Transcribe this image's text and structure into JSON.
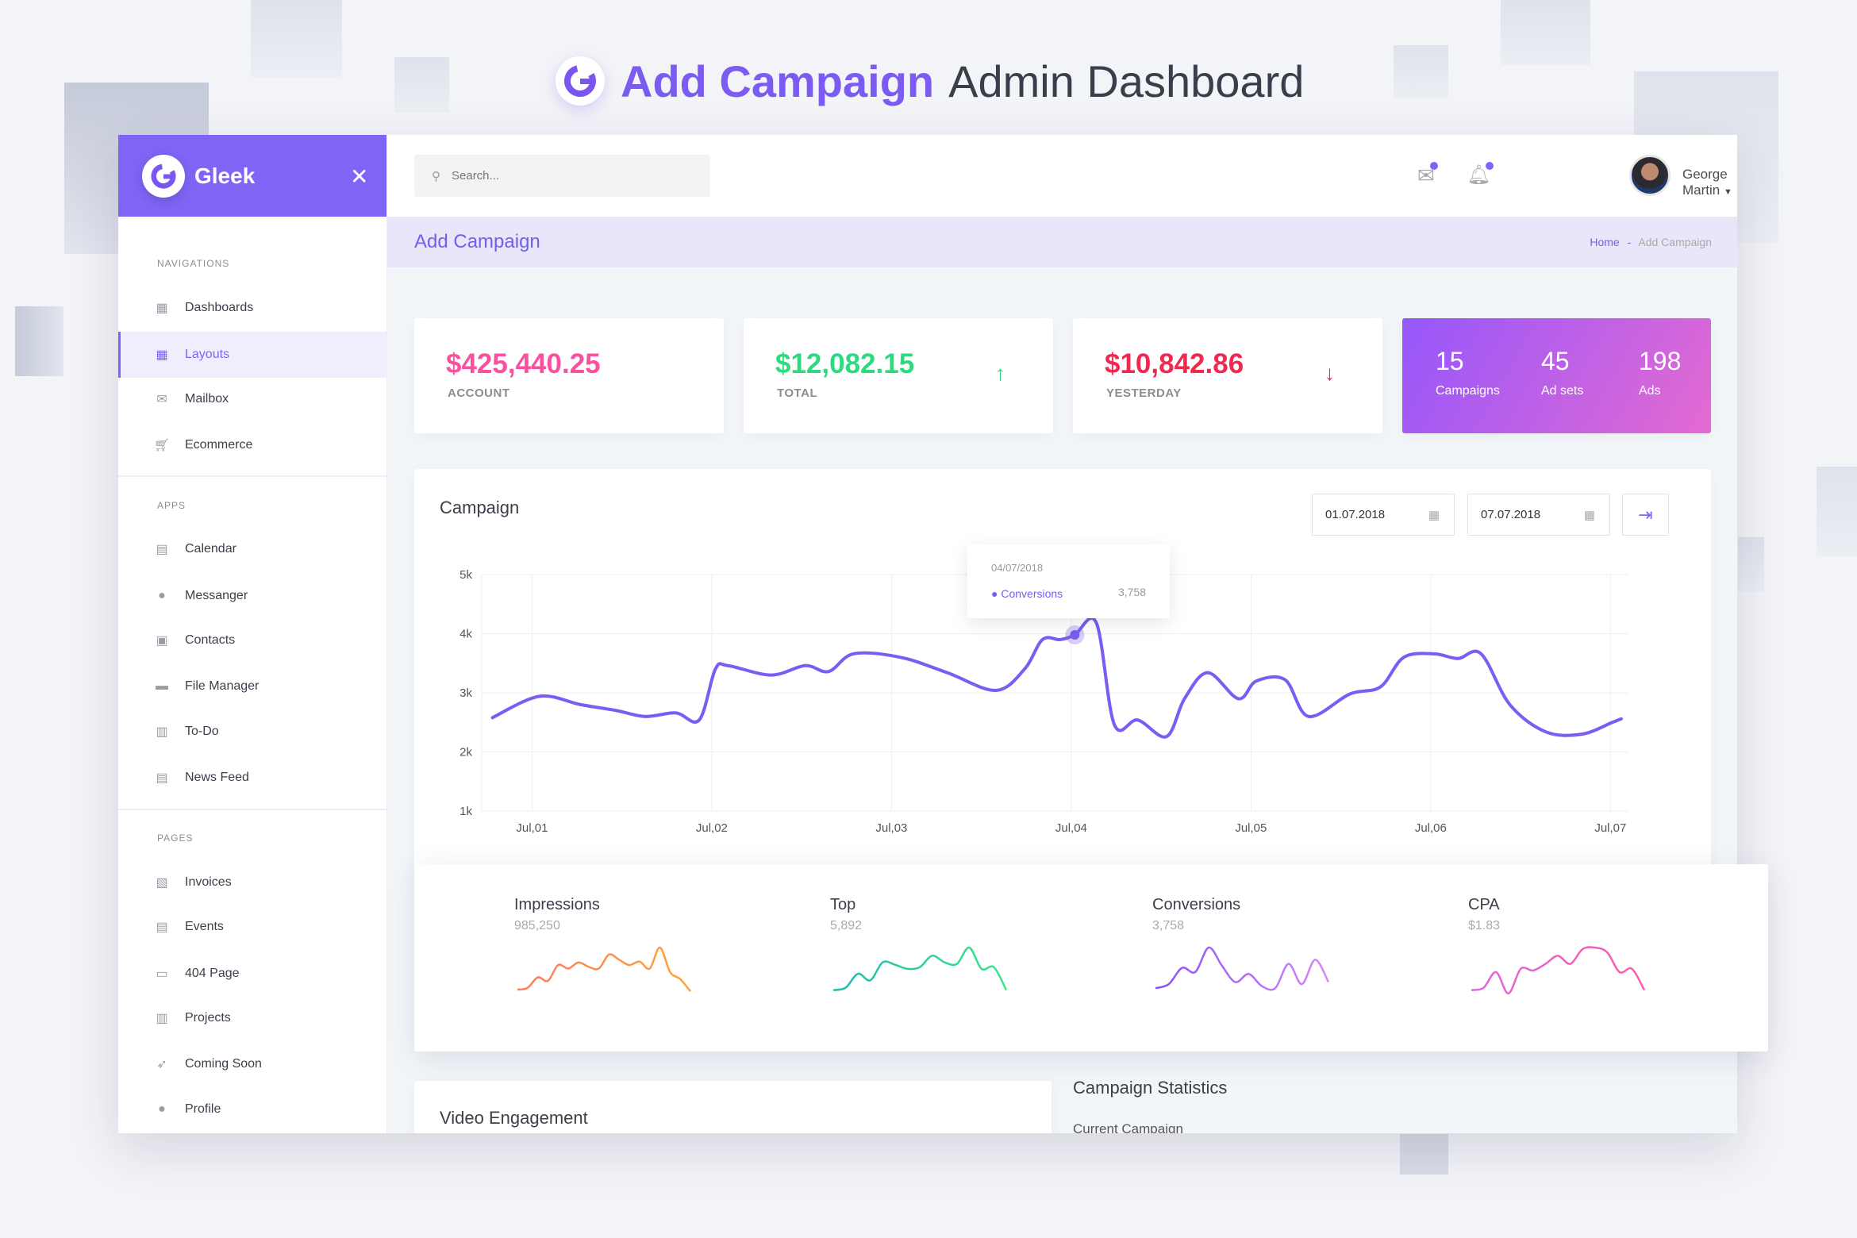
{
  "header": {
    "title_bold": "Add Campaign",
    "title_rest": "Admin Dashboard",
    "logo_letter": "G"
  },
  "brand": {
    "name": "Gleek",
    "logo_letter": "G"
  },
  "sidebar": {
    "sections": [
      {
        "label": "NAVIGATIONS",
        "items": [
          {
            "label": "Dashboards",
            "icon": "dashboard-icon"
          },
          {
            "label": "Layouts",
            "icon": "grid-icon",
            "active": true
          },
          {
            "label": "Mailbox",
            "icon": "mail-icon"
          },
          {
            "label": "Ecommerce",
            "icon": "cart-icon"
          }
        ]
      },
      {
        "label": "APPS",
        "items": [
          {
            "label": "Calendar",
            "icon": "calendar-icon"
          },
          {
            "label": "Messanger",
            "icon": "chat-icon"
          },
          {
            "label": "Contacts",
            "icon": "contacts-icon"
          },
          {
            "label": "File Manager",
            "icon": "folder-icon"
          },
          {
            "label": "To-Do",
            "icon": "clipboard-icon"
          },
          {
            "label": "News Feed",
            "icon": "news-icon"
          }
        ]
      },
      {
        "label": "PAGES",
        "items": [
          {
            "label": "Invoices",
            "icon": "invoice-icon"
          },
          {
            "label": "Events",
            "icon": "events-icon"
          },
          {
            "label": "404 Page",
            "icon": "error-page-icon"
          },
          {
            "label": "Projects",
            "icon": "projects-icon"
          },
          {
            "label": "Coming Soon",
            "icon": "rocket-icon"
          },
          {
            "label": "Profile",
            "icon": "user-icon"
          }
        ]
      }
    ]
  },
  "topbar": {
    "search_placeholder": "Search...",
    "user_name": "George Martin"
  },
  "page": {
    "title": "Add Campaign",
    "breadcrumb": {
      "home": "Home",
      "sep": "-",
      "current": "Add Campaign"
    }
  },
  "stats": [
    {
      "value": "$425,440.25",
      "label": "ACCOUNT",
      "color": "#fb4fa0"
    },
    {
      "value": "$12,082.15",
      "label": "TOTAL",
      "color": "#2ed97f",
      "trend": "up"
    },
    {
      "value": "$10,842.86",
      "label": "YESTERDAY",
      "color": "#f2294f",
      "trend": "down"
    }
  ],
  "summary": [
    {
      "value": "15",
      "label": "Campaigns"
    },
    {
      "value": "45",
      "label": "Ad sets"
    },
    {
      "value": "198",
      "label": "Ads"
    }
  ],
  "campaign": {
    "title": "Campaign",
    "date_from": "01.07.2018",
    "date_to": "07.07.2018",
    "tooltip": {
      "date": "04/07/2018",
      "series": "Conversions",
      "value": "3,758"
    }
  },
  "chart_data": {
    "type": "line",
    "title": "Campaign",
    "series": [
      {
        "name": "Conversions",
        "color": "#7b5cf2",
        "x": [
          -0.22,
          0.04,
          0.27,
          0.47,
          0.63,
          0.8,
          0.93,
          1.02,
          1.09,
          1.33,
          1.52,
          1.65,
          1.79,
          2.05,
          2.31,
          2.58,
          2.74,
          2.84,
          2.94,
          3.02,
          3.14,
          3.24,
          3.37,
          3.53,
          3.63,
          3.76,
          3.93,
          4.03,
          4.19,
          4.32,
          4.55,
          4.72,
          4.85,
          5.02,
          5.15,
          5.28,
          5.44,
          5.64,
          5.84,
          6.01,
          6.06
        ],
        "y": [
          2.58,
          2.94,
          2.8,
          2.7,
          2.6,
          2.66,
          2.54,
          3.4,
          3.46,
          3.3,
          3.46,
          3.36,
          3.66,
          3.6,
          3.34,
          3.04,
          3.4,
          3.9,
          3.9,
          3.98,
          4.18,
          2.46,
          2.54,
          2.26,
          2.9,
          3.34,
          2.9,
          3.2,
          3.22,
          2.6,
          2.98,
          3.1,
          3.6,
          3.66,
          3.58,
          3.66,
          2.8,
          2.34,
          2.3,
          2.5,
          2.56
        ]
      }
    ],
    "x_ticks": [
      "Jul,01",
      "Jul,02",
      "Jul,03",
      "Jul,04",
      "Jul,05",
      "Jul,06",
      "Jul,07"
    ],
    "y_ticks": [
      "5k",
      "4k",
      "3k",
      "2k",
      "1k"
    ],
    "ylim": [
      1,
      5
    ],
    "xlim": [
      -0.28,
      6.1
    ],
    "grid": true,
    "highlight_x": 3.02
  },
  "sparklines": [
    {
      "title": "Impressions",
      "value": "985,250",
      "colors": [
        "#ff7a5a",
        "#ffa43a"
      ],
      "values": [
        1,
        1.2,
        2.4,
        2,
        3.8,
        3.4,
        4.1,
        3.6,
        3.4,
        5,
        4.4,
        3.8,
        4.2,
        3.4,
        5.8,
        3,
        2.2,
        0.8
      ]
    },
    {
      "title": "Top",
      "value": "5,892",
      "colors": [
        "#1bbcb0",
        "#3ee38a"
      ],
      "values": [
        1,
        1.3,
        3,
        2.2,
        4.4,
        4.1,
        3.6,
        3.8,
        5.2,
        4.4,
        4.2,
        6.2,
        3.6,
        3.8,
        1
      ]
    },
    {
      "title": "Conversions",
      "value": "3,758",
      "colors": [
        "#8a4ff7",
        "#d58af7"
      ],
      "values": [
        1,
        1.4,
        3,
        2.6,
        5,
        3.2,
        1.6,
        2.4,
        1.2,
        1,
        3.4,
        1.4,
        3.8,
        1.6
      ]
    },
    {
      "title": "CPA",
      "value": "$1.83",
      "colors": [
        "#e365e0",
        "#ff5ca8"
      ],
      "values": [
        1,
        1.3,
        3.2,
        0.6,
        3.6,
        3.4,
        4.2,
        5.2,
        4.2,
        6,
        6.2,
        5.6,
        3.2,
        3.6,
        1
      ]
    }
  ],
  "bottom": {
    "video_title": "Video Engagement",
    "stats_title": "Campaign Statistics",
    "stats_sub": "Current Campaign"
  }
}
